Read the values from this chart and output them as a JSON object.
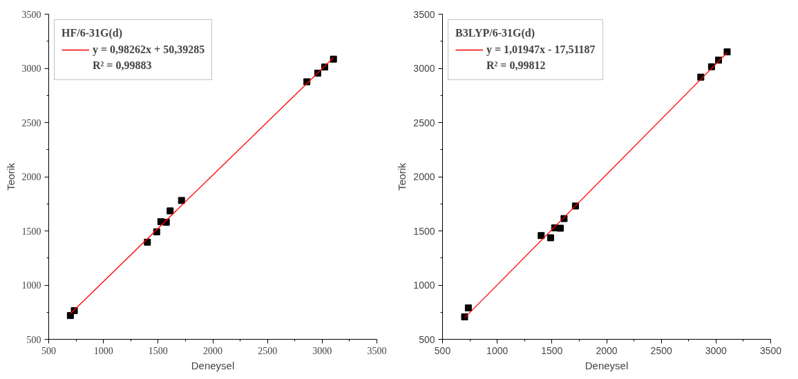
{
  "chart_data": [
    {
      "type": "scatter",
      "xlabel": "Deneysel",
      "ylabel": "Teorik",
      "legend_title": "HF/6-31G(d)",
      "legend": "top left",
      "grid": false,
      "xlim": [
        500,
        3500
      ],
      "ylim": [
        500,
        3500
      ],
      "xticks": [
        500,
        1000,
        1500,
        2000,
        2500,
        3000,
        3500
      ],
      "yticks": [
        500,
        1000,
        1500,
        2000,
        2500,
        3000,
        3500
      ],
      "annotations": [
        "R² = 0,99883"
      ],
      "series": [
        {
          "marker": "square",
          "color": "#000000",
          "x": [
            698,
            734,
            1402,
            1487,
            1525,
            1575,
            1610,
            1714,
            2860,
            2959,
            3023,
            3103
          ],
          "values": [
            719,
            764,
            1396,
            1492,
            1585,
            1580,
            1685,
            1781,
            2876,
            2956,
            3012,
            3085
          ]
        },
        {
          "type": "line",
          "marker": "none",
          "name": "y = 0,98262x + 50,39285",
          "color": "#ff0000",
          "line_style": "solid",
          "x": [
            698,
            3103
          ],
          "values": [
            736,
            3099
          ]
        }
      ]
    },
    {
      "type": "scatter",
      "xlabel": "Deneysel",
      "ylabel": "Teorik",
      "legend_title": "B3LYP/6-31G(d)",
      "legend": "top left",
      "grid": false,
      "xlim": [
        500,
        3500
      ],
      "ylim": [
        500,
        3500
      ],
      "xticks": [
        500,
        1000,
        1500,
        2000,
        2500,
        3000,
        3500
      ],
      "yticks": [
        500,
        1000,
        1500,
        2000,
        2500,
        3000,
        3500
      ],
      "annotations": [
        "R² = 0,99812"
      ],
      "series": [
        {
          "marker": "square",
          "color": "#000000",
          "x": [
            702,
            736,
            1402,
            1488,
            1525,
            1577,
            1611,
            1715,
            2861,
            2959,
            3023,
            3102
          ],
          "values": [
            707,
            790,
            1457,
            1437,
            1528,
            1525,
            1614,
            1730,
            2919,
            3015,
            3076,
            3152
          ]
        },
        {
          "type": "line",
          "marker": "none",
          "name": "y = 1,01947x - 17,51187",
          "color": "#ff0000",
          "line_style": "solid",
          "x": [
            702,
            3102
          ],
          "values": [
            698,
            3145
          ]
        }
      ]
    }
  ]
}
